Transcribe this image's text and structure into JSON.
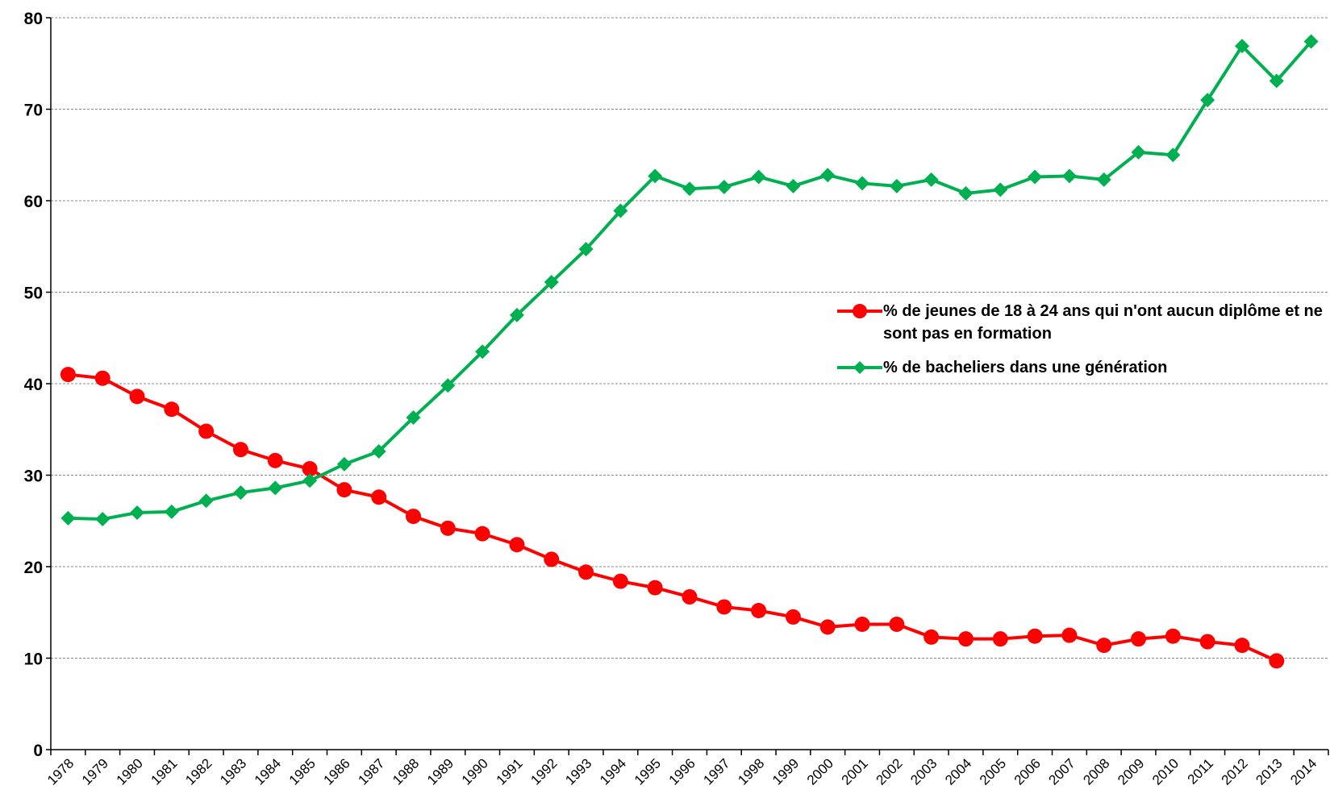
{
  "chart_data": {
    "type": "line",
    "categories": [
      "1978",
      "1979",
      "1980",
      "1981",
      "1982",
      "1983",
      "1984",
      "1985",
      "1986",
      "1987",
      "1988",
      "1989",
      "1990",
      "1991",
      "1992",
      "1993",
      "1994",
      "1995",
      "1996",
      "1997",
      "1998",
      "1999",
      "2000",
      "2001",
      "2002",
      "2003",
      "2004",
      "2005",
      "2006",
      "2007",
      "2008",
      "2009",
      "2010",
      "2011",
      "2012",
      "2013",
      "2014"
    ],
    "series": [
      {
        "name": "% de jeunes de 18 à 24 ans qui n'ont aucun diplôme et ne sont pas en formation",
        "color": "#ff0000",
        "marker": "circle",
        "values": [
          41.0,
          40.6,
          38.6,
          37.2,
          34.8,
          32.8,
          31.6,
          30.7,
          28.4,
          27.6,
          25.5,
          24.2,
          23.6,
          22.4,
          20.8,
          19.4,
          18.4,
          17.7,
          16.7,
          15.6,
          15.2,
          14.5,
          13.4,
          13.7,
          13.7,
          12.3,
          12.1,
          12.1,
          12.4,
          12.5,
          11.4,
          12.1,
          12.4,
          11.8,
          11.4,
          9.7,
          null
        ]
      },
      {
        "name": "% de bacheliers dans une génération",
        "color": "#00b050",
        "marker": "diamond",
        "values": [
          25.3,
          25.2,
          25.9,
          26.0,
          27.2,
          28.1,
          28.6,
          29.4,
          31.2,
          32.6,
          36.3,
          39.8,
          43.5,
          47.5,
          51.1,
          54.7,
          58.9,
          62.7,
          61.3,
          61.5,
          62.6,
          61.6,
          62.8,
          61.9,
          61.6,
          62.3,
          60.8,
          61.2,
          62.6,
          62.7,
          62.3,
          65.3,
          65.0,
          71.0,
          76.9,
          73.1,
          77.4
        ]
      }
    ],
    "ylim": [
      0,
      80
    ],
    "yticks": [
      0,
      10,
      20,
      30,
      40,
      50,
      60,
      70,
      80
    ],
    "grid": true
  }
}
